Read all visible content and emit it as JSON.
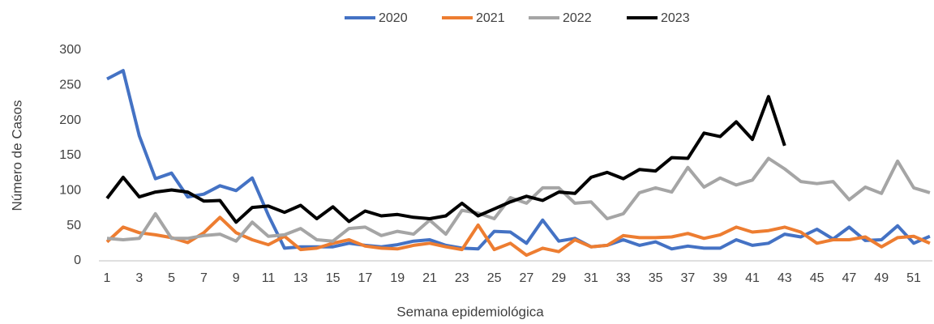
{
  "chart_data": {
    "type": "line",
    "x_label": "Semana epidemiológica",
    "y_label": "Número de Casos",
    "categories": [
      "1",
      null,
      "3",
      null,
      "5",
      null,
      "7",
      null,
      "9",
      null,
      "11",
      null,
      "13",
      null,
      "15",
      null,
      "17",
      null,
      "19",
      null,
      "21",
      null,
      "23",
      null,
      "25",
      null,
      "27",
      null,
      "29",
      null,
      "31",
      null,
      "33",
      null,
      "35",
      null,
      "37",
      null,
      "39",
      null,
      "41",
      null,
      "43",
      null,
      "45",
      null,
      "47",
      null,
      "49",
      null,
      "51",
      null
    ],
    "ylim": [
      0,
      300
    ],
    "yticks": [
      0,
      50,
      100,
      150,
      200,
      250,
      300
    ],
    "grid": false,
    "legend": "top",
    "series": [
      {
        "name": "2020",
        "color": "#4472c4",
        "values": [
          259,
          271,
          178,
          117,
          125,
          91,
          95,
          107,
          100,
          118,
          65,
          18,
          20,
          20,
          20,
          25,
          22,
          20,
          23,
          28,
          30,
          22,
          18,
          17,
          42,
          41,
          25,
          58,
          28,
          32,
          20,
          22,
          30,
          22,
          27,
          17,
          21,
          18,
          18,
          30,
          22,
          25,
          38,
          34,
          45,
          31,
          48,
          29,
          30,
          50,
          25,
          35
        ]
      },
      {
        "name": "2021",
        "color": "#ed7d31",
        "values": [
          27,
          48,
          40,
          37,
          33,
          26,
          40,
          62,
          40,
          30,
          23,
          35,
          16,
          18,
          25,
          30,
          21,
          18,
          17,
          22,
          25,
          20,
          16,
          51,
          16,
          25,
          8,
          18,
          13,
          30,
          20,
          22,
          36,
          33,
          33,
          34,
          39,
          32,
          37,
          48,
          41,
          43,
          48,
          41,
          25,
          30,
          30,
          34,
          20,
          33,
          35,
          25
        ]
      },
      {
        "name": "2022",
        "color": "#a5a5a5",
        "values": [
          32,
          30,
          32,
          67,
          32,
          32,
          36,
          38,
          28,
          55,
          35,
          37,
          46,
          30,
          28,
          46,
          48,
          36,
          42,
          38,
          58,
          38,
          72,
          68,
          60,
          90,
          82,
          104,
          104,
          82,
          84,
          60,
          67,
          97,
          104,
          98,
          133,
          105,
          118,
          108,
          115,
          146,
          131,
          113,
          110,
          113,
          87,
          105,
          96,
          142,
          104,
          97
        ]
      },
      {
        "name": "2023",
        "color": "#000000",
        "values": [
          89,
          119,
          91,
          98,
          101,
          98,
          85,
          86,
          55,
          76,
          78,
          69,
          79,
          60,
          77,
          56,
          71,
          64,
          66,
          62,
          60,
          64,
          82,
          64,
          74,
          84,
          92,
          86,
          98,
          96,
          119,
          126,
          117,
          130,
          128,
          147,
          146,
          182,
          177,
          198,
          173,
          234,
          164,
          null,
          null,
          null,
          null,
          null,
          null,
          null,
          null,
          null
        ]
      }
    ]
  }
}
